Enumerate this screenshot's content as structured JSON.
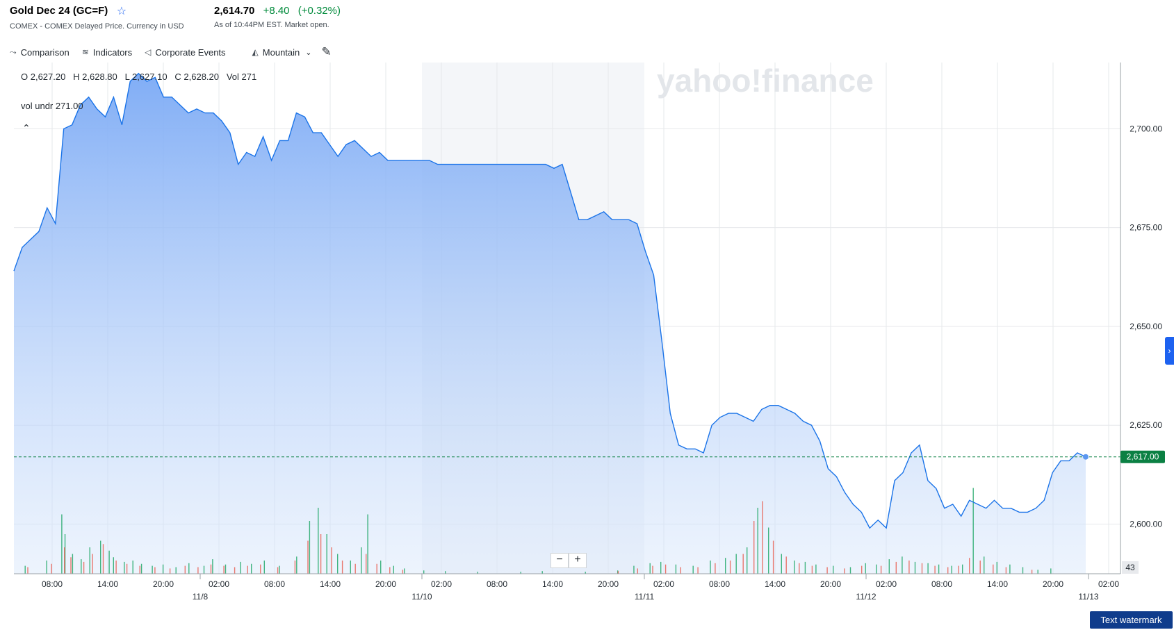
{
  "header": {
    "title": "Gold Dec 24 (GC=F)",
    "star_icon": "star-icon",
    "subtitle": "COMEX - COMEX Delayed Price. Currency in USD",
    "price": "2,614.70",
    "change": "+8.40",
    "change_pct": "(+0.32%)",
    "as_of": "As of 10:44PM EST. Market open."
  },
  "toolbar": {
    "comparison": "Comparison",
    "indicators": "Indicators",
    "corporate_events": "Corporate Events",
    "chart_type": "Mountain"
  },
  "legend": {
    "ohlc": "O 2,627.20   H 2,628.80   L 2,627.10   C 2,628.20   Vol 271",
    "vol_undr": "vol undr  271.00"
  },
  "zoom": {
    "minus": "−",
    "plus": "+"
  },
  "watermark": {
    "logo": "yahoo!finance",
    "text_button": "Text watermark"
  },
  "colors": {
    "line": "#1a73e8",
    "fill_top": "#8ab4f8",
    "vol_up": "#22a86a",
    "vol_down": "#e8574a",
    "last_price": "#0b8043"
  },
  "chart_data": {
    "type": "area",
    "ylim": [
      2592,
      2715
    ],
    "y_ticks": [
      "2,700.00",
      "2,675.00",
      "2,650.00",
      "2,625.00",
      "2,600.00"
    ],
    "y_tick_values": [
      2700,
      2675,
      2650,
      2625,
      2600
    ],
    "x_ticks": [
      "08:00",
      "14:00",
      "20:00",
      "02:00",
      "08:00",
      "14:00",
      "20:00",
      "02:00",
      "08:00",
      "14:00",
      "20:00",
      "02:00",
      "08:00",
      "14:00",
      "20:00",
      "02:00",
      "08:00",
      "14:00",
      "20:00",
      "02:00"
    ],
    "date_labels": [
      "11/8",
      "11/10",
      "11/11",
      "11/12",
      "11/13"
    ],
    "last_price": 2617.0,
    "last_price_label": "2,617.00",
    "volume_box_label": "43",
    "series": [
      {
        "points": [
          [
            2664,
            2670
          ],
          [
            2672,
            2674
          ],
          [
            2680,
            2676
          ],
          [
            2700,
            2701
          ],
          [
            2706,
            2708
          ],
          [
            2705,
            2703
          ],
          [
            2708,
            2701
          ],
          [
            2712,
            2714
          ],
          [
            2712,
            2713
          ],
          [
            2708,
            2708
          ],
          [
            2706,
            2704
          ],
          [
            2705,
            2704
          ],
          [
            2704,
            2702
          ],
          [
            2699,
            2691
          ],
          [
            2694,
            2693
          ],
          [
            2698,
            2692
          ],
          [
            2697,
            2697
          ],
          [
            2704,
            2703
          ],
          [
            2699,
            2699
          ],
          [
            2696,
            2693
          ],
          [
            2696,
            2697
          ],
          [
            2695,
            2693
          ],
          [
            2694,
            2692
          ],
          [
            2692,
            2692
          ],
          [
            2692,
            2692
          ],
          [
            2692,
            2691
          ],
          [
            2691,
            2691
          ],
          [
            2691,
            2691
          ],
          [
            2691,
            2691
          ],
          [
            2691,
            2691
          ],
          [
            2691,
            2691
          ],
          [
            2691,
            2691
          ],
          [
            2691,
            2690
          ],
          [
            2691,
            2684
          ],
          [
            2677,
            2677
          ],
          [
            2678,
            2679
          ],
          [
            2677,
            2677
          ],
          [
            2677,
            2676
          ],
          [
            2669,
            2663
          ],
          [
            2646,
            2628
          ],
          [
            2620,
            2619
          ],
          [
            2619,
            2618
          ],
          [
            2625,
            2627
          ],
          [
            2628,
            2628
          ],
          [
            2627,
            2626
          ],
          [
            2629,
            2630
          ],
          [
            2630,
            2629
          ],
          [
            2628,
            2626
          ],
          [
            2625,
            2621
          ],
          [
            2614,
            2612
          ],
          [
            2608,
            2605
          ],
          [
            2603,
            2599
          ],
          [
            2601,
            2599
          ],
          [
            2611,
            2613
          ],
          [
            2618,
            2620
          ],
          [
            2611,
            2609
          ],
          [
            2604,
            2605
          ],
          [
            2602,
            2606
          ],
          [
            2605,
            2604
          ],
          [
            2606,
            2604
          ],
          [
            2604,
            2603
          ],
          [
            2603,
            2604
          ],
          [
            2606,
            2613
          ],
          [
            2616,
            2616
          ],
          [
            2618,
            2617
          ]
        ]
      }
    ],
    "volume": {
      "up_bars": [
        [
          10,
          12
        ],
        [
          30,
          20
        ],
        [
          44,
          90
        ],
        [
          47,
          60
        ],
        [
          54,
          30
        ],
        [
          62,
          22
        ],
        [
          70,
          40
        ],
        [
          80,
          50
        ],
        [
          88,
          35
        ],
        [
          92,
          25
        ],
        [
          102,
          18
        ],
        [
          110,
          20
        ],
        [
          118,
          15
        ],
        [
          128,
          12
        ],
        [
          138,
          14
        ],
        [
          150,
          10
        ],
        [
          162,
          16
        ],
        [
          176,
          12
        ],
        [
          184,
          22
        ],
        [
          196,
          14
        ],
        [
          210,
          18
        ],
        [
          220,
          15
        ],
        [
          232,
          20
        ],
        [
          246,
          12
        ],
        [
          262,
          26
        ],
        [
          274,
          80
        ],
        [
          282,
          100
        ],
        [
          290,
          60
        ],
        [
          300,
          30
        ],
        [
          312,
          20
        ],
        [
          322,
          40
        ],
        [
          328,
          90
        ],
        [
          340,
          20
        ],
        [
          352,
          12
        ],
        [
          362,
          8
        ],
        [
          380,
          5
        ],
        [
          400,
          4
        ],
        [
          430,
          3
        ],
        [
          470,
          3
        ],
        [
          490,
          4
        ],
        [
          530,
          3
        ],
        [
          560,
          5
        ],
        [
          575,
          12
        ],
        [
          590,
          16
        ],
        [
          600,
          18
        ],
        [
          614,
          14
        ],
        [
          630,
          12
        ],
        [
          646,
          20
        ],
        [
          660,
          24
        ],
        [
          670,
          30
        ],
        [
          680,
          40
        ],
        [
          690,
          100
        ],
        [
          700,
          70
        ],
        [
          712,
          30
        ],
        [
          724,
          20
        ],
        [
          734,
          18
        ],
        [
          744,
          14
        ],
        [
          760,
          12
        ],
        [
          776,
          10
        ],
        [
          790,
          16
        ],
        [
          800,
          14
        ],
        [
          812,
          22
        ],
        [
          824,
          26
        ],
        [
          836,
          18
        ],
        [
          848,
          16
        ],
        [
          858,
          14
        ],
        [
          870,
          12
        ],
        [
          880,
          14
        ],
        [
          890,
          130
        ],
        [
          900,
          26
        ],
        [
          912,
          18
        ],
        [
          924,
          14
        ],
        [
          936,
          10
        ],
        [
          950,
          6
        ],
        [
          962,
          8
        ]
      ],
      "down_bars": [
        [
          12,
          10
        ],
        [
          34,
          15
        ],
        [
          46,
          40
        ],
        [
          52,
          25
        ],
        [
          64,
          18
        ],
        [
          72,
          30
        ],
        [
          82,
          45
        ],
        [
          94,
          20
        ],
        [
          104,
          15
        ],
        [
          116,
          12
        ],
        [
          130,
          10
        ],
        [
          144,
          8
        ],
        [
          158,
          12
        ],
        [
          170,
          10
        ],
        [
          182,
          14
        ],
        [
          194,
          12
        ],
        [
          204,
          10
        ],
        [
          216,
          12
        ],
        [
          228,
          14
        ],
        [
          244,
          10
        ],
        [
          260,
          20
        ],
        [
          272,
          50
        ],
        [
          284,
          60
        ],
        [
          294,
          40
        ],
        [
          304,
          20
        ],
        [
          316,
          15
        ],
        [
          326,
          30
        ],
        [
          336,
          15
        ],
        [
          348,
          10
        ],
        [
          360,
          6
        ],
        [
          560,
          4
        ],
        [
          578,
          8
        ],
        [
          592,
          12
        ],
        [
          604,
          14
        ],
        [
          618,
          10
        ],
        [
          634,
          10
        ],
        [
          650,
          16
        ],
        [
          664,
          20
        ],
        [
          676,
          30
        ],
        [
          686,
          80
        ],
        [
          694,
          110
        ],
        [
          704,
          50
        ],
        [
          716,
          26
        ],
        [
          728,
          16
        ],
        [
          740,
          12
        ],
        [
          754,
          10
        ],
        [
          770,
          8
        ],
        [
          786,
          12
        ],
        [
          804,
          12
        ],
        [
          818,
          18
        ],
        [
          830,
          20
        ],
        [
          842,
          16
        ],
        [
          854,
          12
        ],
        [
          866,
          10
        ],
        [
          876,
          12
        ],
        [
          886,
          24
        ],
        [
          896,
          20
        ],
        [
          908,
          14
        ],
        [
          920,
          10
        ],
        [
          944,
          6
        ]
      ]
    }
  }
}
